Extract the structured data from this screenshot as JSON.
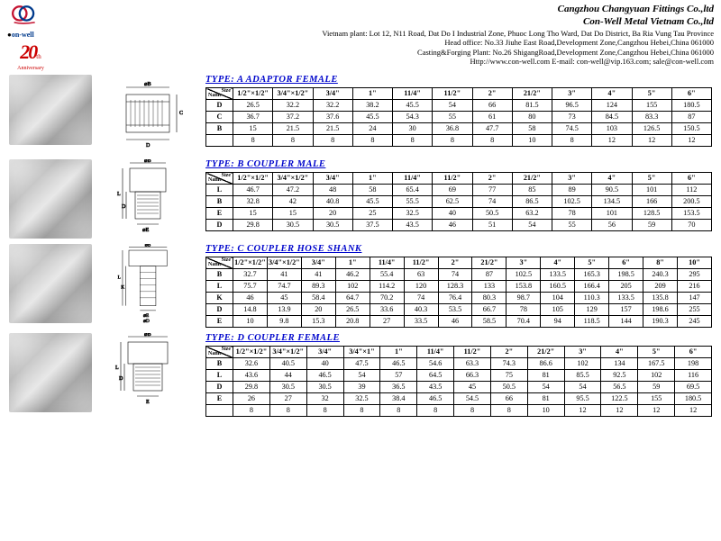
{
  "company": {
    "name1": "Cangzhou Changyuan Fittings Co.,ltd",
    "name2": "Con-Well Metal Vietnam Co.,ltd",
    "addr1": "Vietnam plant: Lot 12, N11 Road, Dat Do I Industrial Zone, Phuoc Long Tho Ward, Dat Do District,  Ba Ria Vung Tau Province",
    "addr2": "Head office: No.33 Jiuhe East Road,Development Zone,Cangzhou Hebei,China 061000",
    "addr3": "Casting&Forging Plant: No.26 ShigangRoad,Development Zone,Cangzhou Hebei,China 061000",
    "addr4": "Http://www.con-well.com     E-mail: con-well@vip.163.com; sale@con-well.com"
  },
  "anniversary": {
    "num": "20",
    "suffix": "th",
    "label": "Anniversary"
  },
  "tables": {
    "A": {
      "title": "TYPE:  A   ADAPTOR   FEMALE",
      "headers": [
        "1/2\"×1/2\"",
        "3/4\"×1/2\"",
        "3/4\"",
        "1\"",
        "11/4\"",
        "11/2\"",
        "2\"",
        "21/2\"",
        "3\"",
        "4\"",
        "5\"",
        "6\""
      ],
      "rows": [
        {
          "h": "D",
          "c": [
            "26.5",
            "32.2",
            "32.2",
            "38.2",
            "45.5",
            "54",
            "66",
            "81.5",
            "96.5",
            "124",
            "155",
            "180.5"
          ]
        },
        {
          "h": "C",
          "c": [
            "36.7",
            "37.2",
            "37.6",
            "45.5",
            "54.3",
            "55",
            "61",
            "80",
            "73",
            "84.5",
            "83.3",
            "87"
          ]
        },
        {
          "h": "B",
          "c": [
            "15",
            "21.5",
            "21.5",
            "24",
            "30",
            "36.8",
            "47.7",
            "58",
            "74.5",
            "103",
            "126.5",
            "150.5"
          ]
        },
        {
          "h": "",
          "c": [
            "8",
            "8",
            "8",
            "8",
            "8",
            "8",
            "8",
            "10",
            "8",
            "12",
            "12",
            "12"
          ]
        }
      ]
    },
    "B": {
      "title": "TYPE:  B   COUPLER   MALE",
      "headers": [
        "1/2\"×1/2\"",
        "3/4\"×1/2\"",
        "3/4\"",
        "1\"",
        "11/4\"",
        "11/2\"",
        "2\"",
        "21/2\"",
        "3\"",
        "4\"",
        "5\"",
        "6\""
      ],
      "rows": [
        {
          "h": "L",
          "c": [
            "46.7",
            "47.2",
            "48",
            "58",
            "65.4",
            "69",
            "77",
            "85",
            "89",
            "90.5",
            "101",
            "112"
          ]
        },
        {
          "h": "B",
          "c": [
            "32.8",
            "42",
            "40.8",
            "45.5",
            "55.5",
            "62.5",
            "74",
            "86.5",
            "102.5",
            "134.5",
            "166",
            "200.5"
          ]
        },
        {
          "h": "E",
          "c": [
            "15",
            "15",
            "20",
            "25",
            "32.5",
            "40",
            "50.5",
            "63.2",
            "78",
            "101",
            "128.5",
            "153.5"
          ]
        },
        {
          "h": "D",
          "c": [
            "29.8",
            "30.5",
            "30.5",
            "37.5",
            "43.5",
            "46",
            "51",
            "54",
            "55",
            "56",
            "59",
            "70"
          ]
        }
      ]
    },
    "C": {
      "title": "TYPE:  C   COUPLER   HOSE   SHANK",
      "headers": [
        "1/2\"×1/2\"",
        "3/4\"×1/2\"",
        "3/4\"",
        "1\"",
        "11/4\"",
        "11/2\"",
        "2\"",
        "21/2\"",
        "3\"",
        "4\"",
        "5\"",
        "6\"",
        "8\"",
        "10\""
      ],
      "rows": [
        {
          "h": "B",
          "c": [
            "32.7",
            "41",
            "41",
            "46.2",
            "55.4",
            "63",
            "74",
            "87",
            "102.5",
            "133.5",
            "165.3",
            "198.5",
            "240.3",
            "295"
          ]
        },
        {
          "h": "L",
          "c": [
            "75.7",
            "74.7",
            "89.3",
            "102",
            "114.2",
            "120",
            "128.3",
            "133",
            "153.8",
            "160.5",
            "166.4",
            "205",
            "209",
            "216"
          ]
        },
        {
          "h": "K",
          "c": [
            "46",
            "45",
            "58.4",
            "64.7",
            "70.2",
            "74",
            "76.4",
            "80.3",
            "98.7",
            "104",
            "110.3",
            "133.5",
            "135.8",
            "147"
          ]
        },
        {
          "h": "D",
          "c": [
            "14.8",
            "13.9",
            "20",
            "26.5",
            "33.6",
            "40.3",
            "53.5",
            "66.7",
            "78",
            "105",
            "129",
            "157",
            "198.6",
            "255"
          ]
        },
        {
          "h": "E",
          "c": [
            "10",
            "9.8",
            "15.3",
            "20.8",
            "27",
            "33.5",
            "46",
            "58.5",
            "70.4",
            "94",
            "118.5",
            "144",
            "190.3",
            "245"
          ]
        }
      ]
    },
    "D": {
      "title": "TYPE:  D   COUPLER   FEMALE",
      "headers": [
        "1/2\"×1/2\"",
        "3/4\"×1/2\"",
        "3/4\"",
        "3/4\"×1\"",
        "1\"",
        "11/4\"",
        "11/2\"",
        "2\"",
        "21/2\"",
        "3\"",
        "4\"",
        "5\"",
        "6\""
      ],
      "rows": [
        {
          "h": "B",
          "c": [
            "32.6",
            "40.5",
            "40",
            "47.5",
            "46.5",
            "54.6",
            "63.3",
            "74.3",
            "86.6",
            "102",
            "134",
            "167.5",
            "198"
          ]
        },
        {
          "h": "L",
          "c": [
            "43.6",
            "44",
            "46.5",
            "54",
            "57",
            "64.5",
            "66.3",
            "75",
            "81",
            "85.5",
            "92.5",
            "102",
            "116"
          ]
        },
        {
          "h": "D",
          "c": [
            "29.8",
            "30.5",
            "30.5",
            "39",
            "36.5",
            "43.5",
            "45",
            "50.5",
            "54",
            "54",
            "56.5",
            "59",
            "69.5"
          ]
        },
        {
          "h": "E",
          "c": [
            "26",
            "27",
            "32",
            "32.5",
            "38.4",
            "46.5",
            "54.5",
            "66",
            "81",
            "95.5",
            "122.5",
            "155",
            "180.5"
          ]
        },
        {
          "h": "",
          "c": [
            "8",
            "8",
            "8",
            "8",
            "8",
            "8",
            "8",
            "8",
            "10",
            "12",
            "12",
            "12",
            "12"
          ]
        }
      ]
    }
  }
}
